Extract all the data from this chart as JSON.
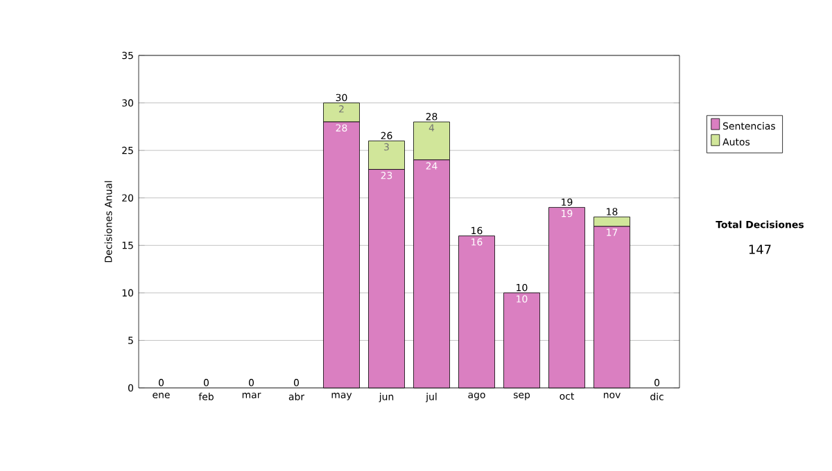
{
  "chart_data": {
    "type": "bar",
    "stacked": true,
    "ylabel": "Decisiones Anual",
    "categories": [
      "ene",
      "feb",
      "mar",
      "abr",
      "may",
      "jun",
      "jul",
      "ago",
      "sep",
      "oct",
      "nov",
      "dic"
    ],
    "series": [
      {
        "name": "Sentencias",
        "color": "#da7fc1",
        "values": [
          0,
          0,
          0,
          0,
          28,
          23,
          24,
          16,
          10,
          19,
          17,
          0
        ],
        "value_labels": [
          null,
          null,
          null,
          null,
          "28",
          "23",
          "24",
          "16",
          "10",
          "19",
          "17",
          null
        ]
      },
      {
        "name": "Autos",
        "color": "#d1e69a",
        "values": [
          0,
          0,
          0,
          0,
          2,
          3,
          4,
          0,
          0,
          0,
          1,
          0
        ],
        "value_labels": [
          null,
          null,
          null,
          null,
          "2",
          "3",
          "4",
          null,
          null,
          null,
          null,
          null
        ]
      }
    ],
    "totals": [
      "0",
      "0",
      "0",
      "0",
      "30",
      "26",
      "28",
      "16",
      "10",
      "19",
      "18",
      "0"
    ],
    "ylim": [
      0,
      35
    ],
    "yticks": [
      0,
      5,
      10,
      15,
      20,
      25,
      30,
      35
    ],
    "grid": "y",
    "legend": "right",
    "annotations": [
      "Total Decisiones",
      "147"
    ]
  }
}
